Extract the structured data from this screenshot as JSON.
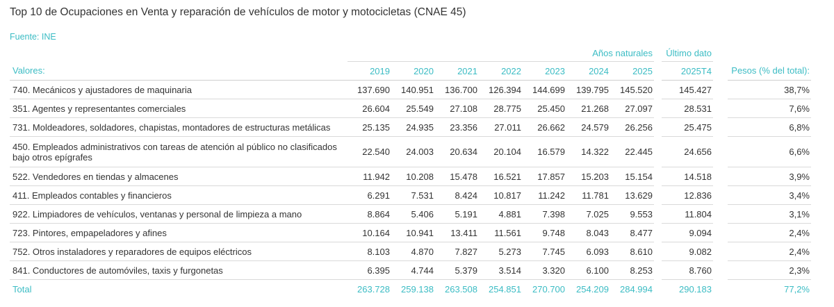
{
  "title": "Top 10 de Ocupaciones en Venta y reparación de vehículos de motor y motocicletas (CNAE 45)",
  "source": "Fuente: INE",
  "table": {
    "group_headers": {
      "years": "Años naturales",
      "latest": "Último dato"
    },
    "headers": {
      "label": "Valores:",
      "years": [
        "2019",
        "2020",
        "2021",
        "2022",
        "2023",
        "2024",
        "2025"
      ],
      "latest": "2025T4",
      "weight": "Pesos (% del total):"
    },
    "rows": [
      {
        "label": "740. Mecánicos y ajustadores de maquinaria",
        "years": [
          "137.690",
          "140.951",
          "136.700",
          "126.394",
          "144.699",
          "139.795",
          "145.520"
        ],
        "latest": "145.427",
        "weight": "38,7%"
      },
      {
        "label": "351. Agentes y representantes comerciales",
        "years": [
          "26.604",
          "25.549",
          "27.108",
          "28.775",
          "25.450",
          "21.268",
          "27.097"
        ],
        "latest": "28.531",
        "weight": "7,6%"
      },
      {
        "label": "731. Moldeadores, soldadores, chapistas, montadores de estructuras metálicas",
        "years": [
          "25.135",
          "24.935",
          "23.356",
          "27.011",
          "26.662",
          "24.579",
          "26.256"
        ],
        "latest": "25.475",
        "weight": "6,8%"
      },
      {
        "label": "450. Empleados administrativos con tareas de atención al público no clasificados bajo otros epígrafes",
        "years": [
          "22.540",
          "24.003",
          "20.634",
          "20.104",
          "16.579",
          "14.322",
          "22.445"
        ],
        "latest": "24.656",
        "weight": "6,6%"
      },
      {
        "label": "522. Vendedores en tiendas y almacenes",
        "years": [
          "11.942",
          "10.208",
          "15.478",
          "16.521",
          "17.857",
          "15.203",
          "15.154"
        ],
        "latest": "14.518",
        "weight": "3,9%"
      },
      {
        "label": "411. Empleados contables y financieros",
        "years": [
          "6.291",
          "7.531",
          "8.424",
          "10.817",
          "11.242",
          "11.781",
          "13.629"
        ],
        "latest": "12.836",
        "weight": "3,4%"
      },
      {
        "label": "922. Limpiadores de vehículos, ventanas y personal de limpieza a mano",
        "years": [
          "8.864",
          "5.406",
          "5.191",
          "4.881",
          "7.398",
          "7.025",
          "9.553"
        ],
        "latest": "11.804",
        "weight": "3,1%"
      },
      {
        "label": "723. Pintores, empapeladores y afines",
        "years": [
          "10.164",
          "10.941",
          "13.411",
          "11.561",
          "9.748",
          "8.043",
          "8.477"
        ],
        "latest": "9.094",
        "weight": "2,4%"
      },
      {
        "label": "752. Otros instaladores y reparadores de equipos eléctricos",
        "years": [
          "8.103",
          "4.870",
          "7.827",
          "5.273",
          "7.745",
          "6.093",
          "8.610"
        ],
        "latest": "9.082",
        "weight": "2,4%"
      },
      {
        "label": "841. Conductores de automóviles, taxis y furgonetas",
        "years": [
          "6.395",
          "4.744",
          "5.379",
          "3.514",
          "3.320",
          "6.100",
          "8.253"
        ],
        "latest": "8.760",
        "weight": "2,3%"
      }
    ],
    "total": {
      "label": "Total",
      "years": [
        "263.728",
        "259.138",
        "263.508",
        "254.851",
        "270.700",
        "254.209",
        "284.994"
      ],
      "latest": "290.183",
      "weight": "77,2%"
    }
  },
  "colors": {
    "accent": "#3bbcc4",
    "text": "#333333",
    "rule": "#d9d9d9"
  }
}
